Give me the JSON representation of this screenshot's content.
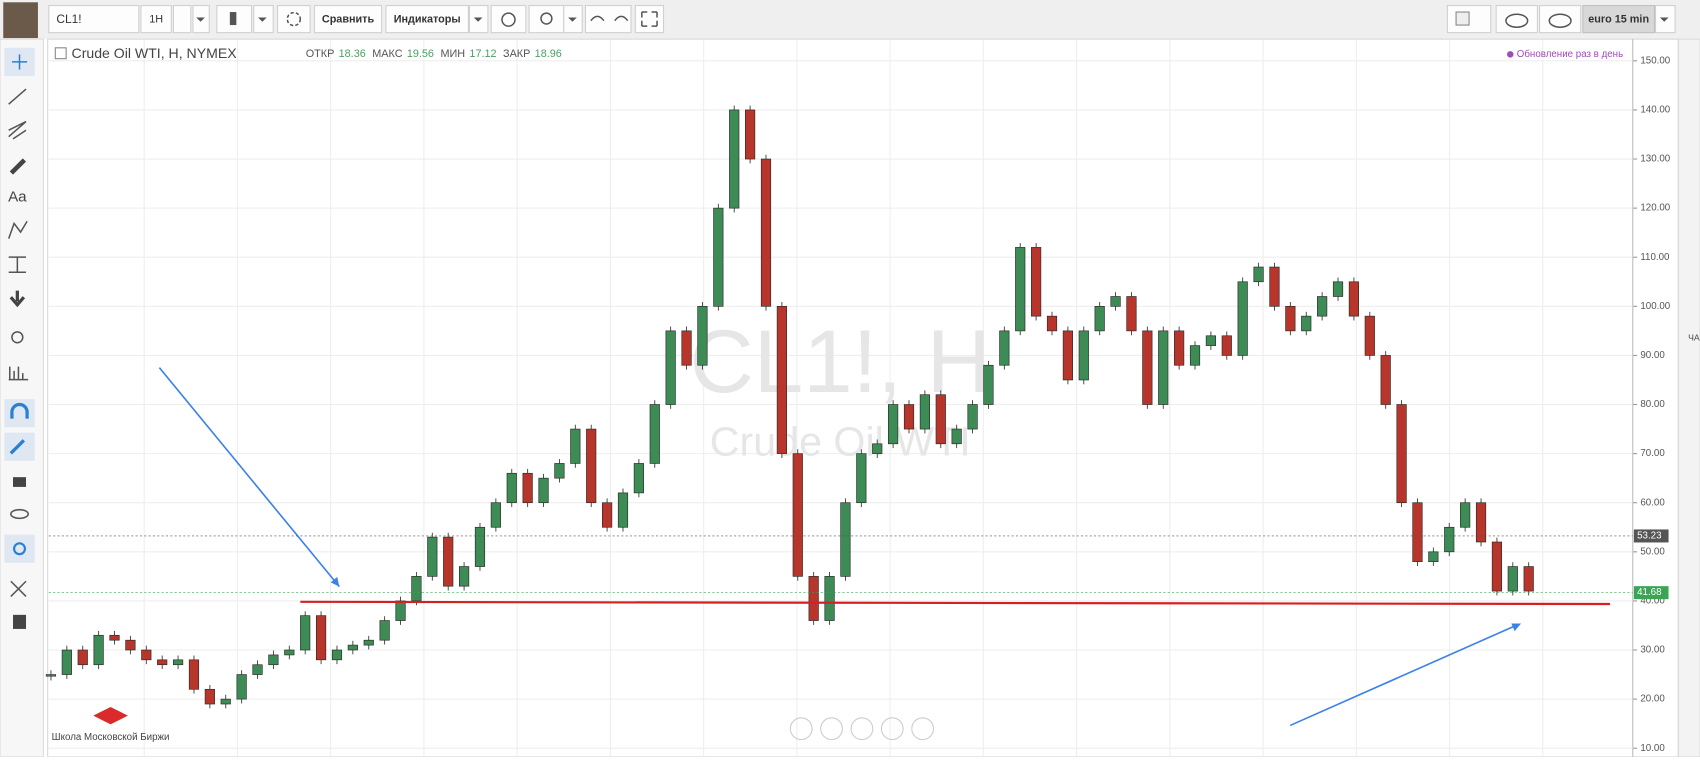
{
  "toolbar": {
    "symbol": "CL1!",
    "interval": "1H",
    "compare": "Сравнить",
    "indicators": "Индикаторы",
    "layout": "euro 15 min"
  },
  "left_toolbar": {
    "text_tool": "Aa"
  },
  "right_sidebar": {
    "label": "ЧА"
  },
  "chart_data": {
    "type": "candlestick",
    "title": "Crude Oil WTI, H, NYMEX",
    "ohlc_header": [
      {
        "label": "ОТКР",
        "value": "18.36"
      },
      {
        "label": "МАКС",
        "value": "19.56"
      },
      {
        "label": "МИН",
        "value": "17.12"
      },
      {
        "label": "ЗАКР",
        "value": "18.96"
      }
    ],
    "update_note": "Обновление раз в день",
    "watermark": "CL1!, H",
    "watermark_subtitle": "Crude Oil WTI",
    "logo_text": "Школа Московской Биржи",
    "values": [
      25,
      30,
      27,
      33,
      32,
      30,
      28,
      27,
      28,
      22,
      19,
      20,
      25,
      27,
      29,
      30,
      37,
      28,
      30,
      31,
      32,
      36,
      40,
      45,
      53,
      43,
      47,
      55,
      60,
      66,
      60,
      65,
      68,
      75,
      60,
      55,
      62,
      68,
      80,
      95,
      88,
      100,
      120,
      140,
      130,
      100,
      70,
      45,
      36,
      45,
      60,
      70,
      72,
      80,
      75,
      82,
      72,
      75,
      80,
      88,
      95,
      112,
      98,
      95,
      85,
      95,
      100,
      102,
      95,
      80,
      95,
      88,
      92,
      94,
      90,
      105,
      108,
      100,
      95,
      98,
      102,
      105,
      98,
      90,
      80,
      60,
      48,
      50,
      55,
      60,
      52,
      42,
      47,
      42
    ],
    "up_color": "#3d8b55",
    "down_color": "#b8352b",
    "ylim": [
      10,
      150
    ],
    "yticks": [
      {
        "value": 10,
        "label": "10.00"
      },
      {
        "value": 20,
        "label": "20.00"
      },
      {
        "value": 30,
        "label": "30.00"
      },
      {
        "value": 40,
        "label": "40.00"
      },
      {
        "value": 50,
        "label": "50.00"
      },
      {
        "value": 60,
        "label": "60.00"
      },
      {
        "value": 70,
        "label": "70.00"
      },
      {
        "value": 80,
        "label": "80.00"
      },
      {
        "value": 90,
        "label": "90.00"
      },
      {
        "value": 100,
        "label": "100.00"
      },
      {
        "value": 110,
        "label": "110.00"
      },
      {
        "value": 120,
        "label": "120.00"
      },
      {
        "value": 130,
        "label": "130.00"
      },
      {
        "value": 140,
        "label": "140.00"
      },
      {
        "value": 150,
        "label": "150.00"
      }
    ],
    "price_labels": [
      {
        "value": 53.23,
        "color": "#555555"
      },
      {
        "value": 41.68,
        "color": "#3aa655"
      }
    ],
    "grid": true
  }
}
